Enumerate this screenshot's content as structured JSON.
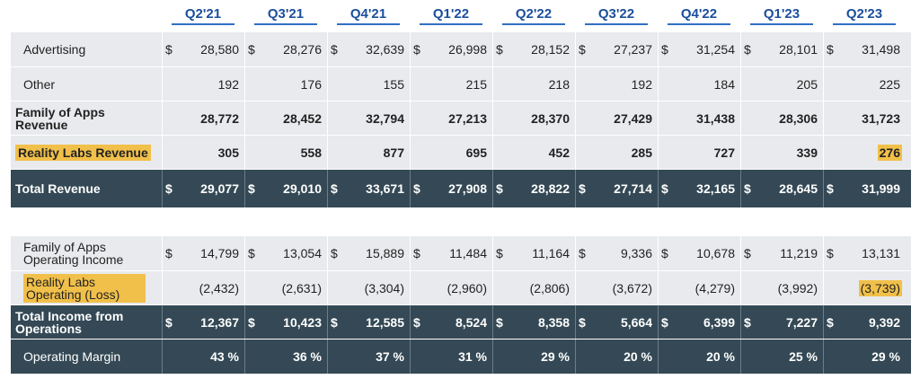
{
  "quarters": [
    "Q2'21",
    "Q3'21",
    "Q4'21",
    "Q1'22",
    "Q2'22",
    "Q3'22",
    "Q4'22",
    "Q1'23",
    "Q2'23"
  ],
  "revenue_table": {
    "rows": [
      {
        "label": "Advertising",
        "currency": "$",
        "values": [
          "28,580",
          "28,276",
          "32,639",
          "26,998",
          "28,152",
          "27,237",
          "31,254",
          "28,101",
          "31,498"
        ]
      },
      {
        "label": "Other",
        "currency": "",
        "values": [
          "192",
          "176",
          "155",
          "215",
          "218",
          "192",
          "184",
          "205",
          "225"
        ]
      },
      {
        "label": "Family of Apps Revenue",
        "currency": "",
        "values": [
          "28,772",
          "28,452",
          "32,794",
          "27,213",
          "28,370",
          "27,429",
          "31,438",
          "28,306",
          "31,723"
        ]
      },
      {
        "label": "Reality Labs Revenue",
        "currency": "",
        "values": [
          "305",
          "558",
          "877",
          "695",
          "452",
          "285",
          "727",
          "339",
          "276"
        ]
      },
      {
        "label": "Total Revenue",
        "currency": "$",
        "values": [
          "29,077",
          "29,010",
          "33,671",
          "27,908",
          "28,822",
          "27,714",
          "32,165",
          "28,645",
          "31,999"
        ]
      }
    ]
  },
  "income_table": {
    "rows": [
      {
        "label": "Family of Apps Operating Income",
        "currency": "$",
        "values": [
          "14,799",
          "13,054",
          "15,889",
          "11,484",
          "11,164",
          "9,336",
          "10,678",
          "11,219",
          "13,131"
        ]
      },
      {
        "label": "Reality Labs Operating (Loss)",
        "currency": "",
        "values": [
          "(2,432)",
          "(2,631)",
          "(3,304)",
          "(2,960)",
          "(2,806)",
          "(3,672)",
          "(4,279)",
          "(3,992)",
          "(3,739)"
        ]
      },
      {
        "label": "Total Income from Operations",
        "currency": "$",
        "values": [
          "12,367",
          "10,423",
          "12,585",
          "8,524",
          "8,358",
          "5,664",
          "6,399",
          "7,227",
          "9,392"
        ]
      },
      {
        "label": "Operating Margin",
        "currency": "",
        "values": [
          "43 %",
          "36 %",
          "37 %",
          "31 %",
          "29 %",
          "20 %",
          "20 %",
          "25 %",
          "29 %"
        ]
      }
    ]
  },
  "colors": {
    "header_text": "#1b4f9c",
    "light_row": "#e8eaed",
    "dark_row": "#344955",
    "highlight": "#f1c04a"
  }
}
